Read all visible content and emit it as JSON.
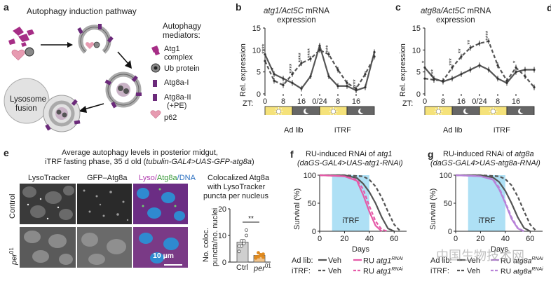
{
  "panel_a": {
    "letter": "a",
    "title": "Autophagy induction pathway",
    "legend_header_1": "Autophagy",
    "legend_header_2": "mediators:",
    "legend": [
      {
        "line1": "Atg1",
        "line2": "complex",
        "color": "#a62d86"
      },
      {
        "line1": "Ub protein",
        "line2": "",
        "color": "#555555"
      },
      {
        "line1": "Atg8a-I",
        "line2": "",
        "color": "#6b2a7a"
      },
      {
        "line1": "Atg8a-II",
        "line2": "(+PE)",
        "color": "#6b2a7a"
      },
      {
        "line1": "p62",
        "line2": "",
        "color": "#e79bb1"
      }
    ],
    "lysosome_1": "Lysosome",
    "lysosome_2": "fusion"
  },
  "panel_b": {
    "letter": "b",
    "title_italic": "atg1/Act5C",
    "title_rest": " mRNA",
    "title_2": "expression",
    "ylabel": "Rel. expression",
    "zt_label": "ZT:",
    "xticks": [
      "0",
      "8",
      "16",
      "0/24",
      "8",
      "16"
    ],
    "legend_adlib": "Ad lib",
    "legend_itrf": "iTRF",
    "chart_data": {
      "type": "line",
      "x": [
        0,
        4,
        8,
        12,
        16,
        20,
        24,
        28,
        32,
        36,
        40,
        44,
        48
      ],
      "series": [
        {
          "name": "Ad lib",
          "values": [
            9.0,
            4.5,
            3.5,
            2.5,
            1.2,
            4.0,
            11.0,
            4.0,
            1.8,
            1.8,
            0.8,
            1.5,
            9.5
          ]
        },
        {
          "name": "iTRF",
          "values": [
            7.5,
            3.0,
            2.0,
            4.5,
            7.0,
            8.0,
            10.0,
            9.0,
            5.5,
            2.5,
            1.2,
            4.5,
            8.5
          ]
        }
      ],
      "ylim": [
        0,
        15
      ],
      "yticks": [
        0,
        5,
        10,
        15
      ],
      "significance": [
        "****",
        "*",
        "****",
        "****",
        "****",
        "***",
        "***"
      ]
    }
  },
  "panel_c": {
    "letter": "c",
    "title_italic": "atg8a/Act5C",
    "title_rest": " mRNA",
    "title_2": "expression",
    "ylabel": "Rel. expression",
    "zt_label": "ZT:",
    "xticks": [
      "0",
      "8",
      "16",
      "0/24",
      "8",
      "16"
    ],
    "legend_adlib": "Ad lib",
    "legend_itrf": "iTRF",
    "chart_data": {
      "type": "line",
      "x": [
        0,
        4,
        8,
        12,
        16,
        20,
        24,
        28,
        32,
        36,
        40,
        44,
        48
      ],
      "series": [
        {
          "name": "Ad lib",
          "values": [
            6.0,
            3.5,
            2.8,
            3.5,
            4.5,
            5.5,
            6.5,
            5.5,
            3.5,
            2.5,
            5.0,
            5.5,
            5.5
          ]
        },
        {
          "name": "iTRF",
          "values": [
            3.5,
            3.2,
            3.0,
            6.0,
            8.5,
            10.5,
            11.5,
            12.0,
            6.5,
            3.0,
            6.0,
            4.0,
            1.5
          ]
        }
      ],
      "ylim": [
        0,
        15
      ],
      "yticks": [
        0,
        5,
        10,
        15
      ],
      "significance": [
        "*",
        "***",
        "***",
        "**",
        "**",
        "****",
        "*"
      ]
    }
  },
  "panel_e": {
    "letter": "e",
    "title_1": "Average autophagy levels in posterior midgut,",
    "title_2": "iTRF fasting phase, 35 d old (",
    "title_2_italic": "tubulin-GAL4>UAS-GFP-atg8a",
    "title_2_end": ")",
    "col_lysotracker": "LysoTracker",
    "col_gfp": "GFP–Atg8a",
    "col_merge_lyso": "Lyso/",
    "col_merge_atg": "Atg8a",
    "col_merge_dna": "/DNA",
    "row_control": "Control",
    "row_per": "per",
    "row_per_sup": "01",
    "scale_bar": "10 µm",
    "quant_title_1": "Colocalized Atg8a",
    "quant_title_2": "with LysoTracker",
    "quant_title_3": "puncta per nucleus",
    "quant_ylabel_1": "No. coloc.",
    "quant_ylabel_2": "puncta/no. nuclei",
    "chart_data": {
      "type": "bar",
      "categories": [
        "Ctrl",
        "per01"
      ],
      "values": [
        7.5,
        2.5
      ],
      "ylim": [
        0,
        20
      ],
      "yticks": [
        0,
        10,
        20
      ],
      "significance": "**"
    },
    "cat_ctrl": "Ctrl",
    "cat_per": "per",
    "cat_per_sup": "01"
  },
  "panel_f": {
    "letter": "f",
    "title_1": "RU-induced RNAi of ",
    "title_1_italic": "atg1",
    "title_2": "(daGS-GAL4>UAS-atg1-RNAi)",
    "ylabel": "Survival (%)",
    "xlabel": "Days",
    "itrf_box": "iTRF",
    "legend_adlib": "Ad lib:",
    "legend_itrf": "iTRF:",
    "legend_veh": "Veh",
    "legend_ru": "RU ",
    "legend_ru_gene": "atg1",
    "legend_ru_sup": "RNAi",
    "chart_data": {
      "type": "line",
      "x_label": "Days",
      "xlim": [
        0,
        70
      ],
      "xticks": [
        0,
        20,
        40,
        60
      ],
      "ylim": [
        0,
        100
      ],
      "yticks": [
        0,
        50,
        100
      ],
      "itrf_window": [
        10,
        40
      ],
      "series": [
        {
          "name": "Ad lib Veh",
          "x": [
            0,
            20,
            30,
            35,
            40,
            45,
            50,
            55,
            60
          ],
          "values": [
            100,
            100,
            95,
            85,
            70,
            50,
            25,
            5,
            0
          ]
        },
        {
          "name": "iTRF Veh",
          "x": [
            0,
            20,
            35,
            40,
            45,
            50,
            55,
            60,
            65
          ],
          "values": [
            100,
            100,
            98,
            92,
            80,
            60,
            35,
            12,
            0
          ]
        },
        {
          "name": "Ad lib RU atg1 RNAi",
          "x": [
            0,
            20,
            30,
            35,
            40,
            45,
            50
          ],
          "values": [
            100,
            98,
            90,
            65,
            35,
            10,
            0
          ]
        },
        {
          "name": "iTRF RU atg1 RNAi",
          "x": [
            0,
            20,
            30,
            35,
            40,
            45,
            50,
            55
          ],
          "values": [
            100,
            98,
            92,
            75,
            45,
            18,
            3,
            0
          ]
        }
      ]
    }
  },
  "panel_g": {
    "letter": "g",
    "title_1": "RU-induced RNAi of ",
    "title_1_italic": "atg8a",
    "title_2": "(daGS-GAL4>UAS-atg8a-RNAi)",
    "ylabel": "Survival (%)",
    "xlabel": "Days",
    "itrf_box": "iTRF",
    "legend_adlib": "Ad lib:",
    "legend_itrf": "iTRF:",
    "legend_veh": "Veh",
    "legend_ru": "RU ",
    "legend_ru_gene": "atg8a",
    "legend_ru_sup": "RNAi",
    "chart_data": {
      "type": "line",
      "x_label": "Days",
      "xlim": [
        0,
        70
      ],
      "xticks": [
        0,
        20,
        40,
        60
      ],
      "ylim": [
        0,
        100
      ],
      "yticks": [
        0,
        50,
        100
      ],
      "itrf_window": [
        10,
        40
      ],
      "series": [
        {
          "name": "Ad lib Veh",
          "x": [
            0,
            20,
            30,
            35,
            40,
            45,
            50,
            55,
            60
          ],
          "values": [
            100,
            100,
            96,
            88,
            72,
            50,
            25,
            6,
            0
          ]
        },
        {
          "name": "iTRF Veh",
          "x": [
            0,
            20,
            35,
            40,
            45,
            50,
            55,
            60,
            65
          ],
          "values": [
            100,
            100,
            98,
            93,
            82,
            62,
            36,
            12,
            0
          ]
        },
        {
          "name": "Ad lib RU atg8a RNAi",
          "x": [
            0,
            20,
            30,
            35,
            40,
            45,
            50,
            55
          ],
          "values": [
            100,
            98,
            92,
            75,
            50,
            22,
            5,
            0
          ]
        },
        {
          "name": "iTRF RU atg8a RNAi",
          "x": [
            0,
            20,
            30,
            35,
            40,
            45,
            50,
            55
          ],
          "values": [
            100,
            98,
            93,
            78,
            52,
            25,
            6,
            0
          ]
        }
      ]
    }
  },
  "watermark": "中国生物技术网"
}
